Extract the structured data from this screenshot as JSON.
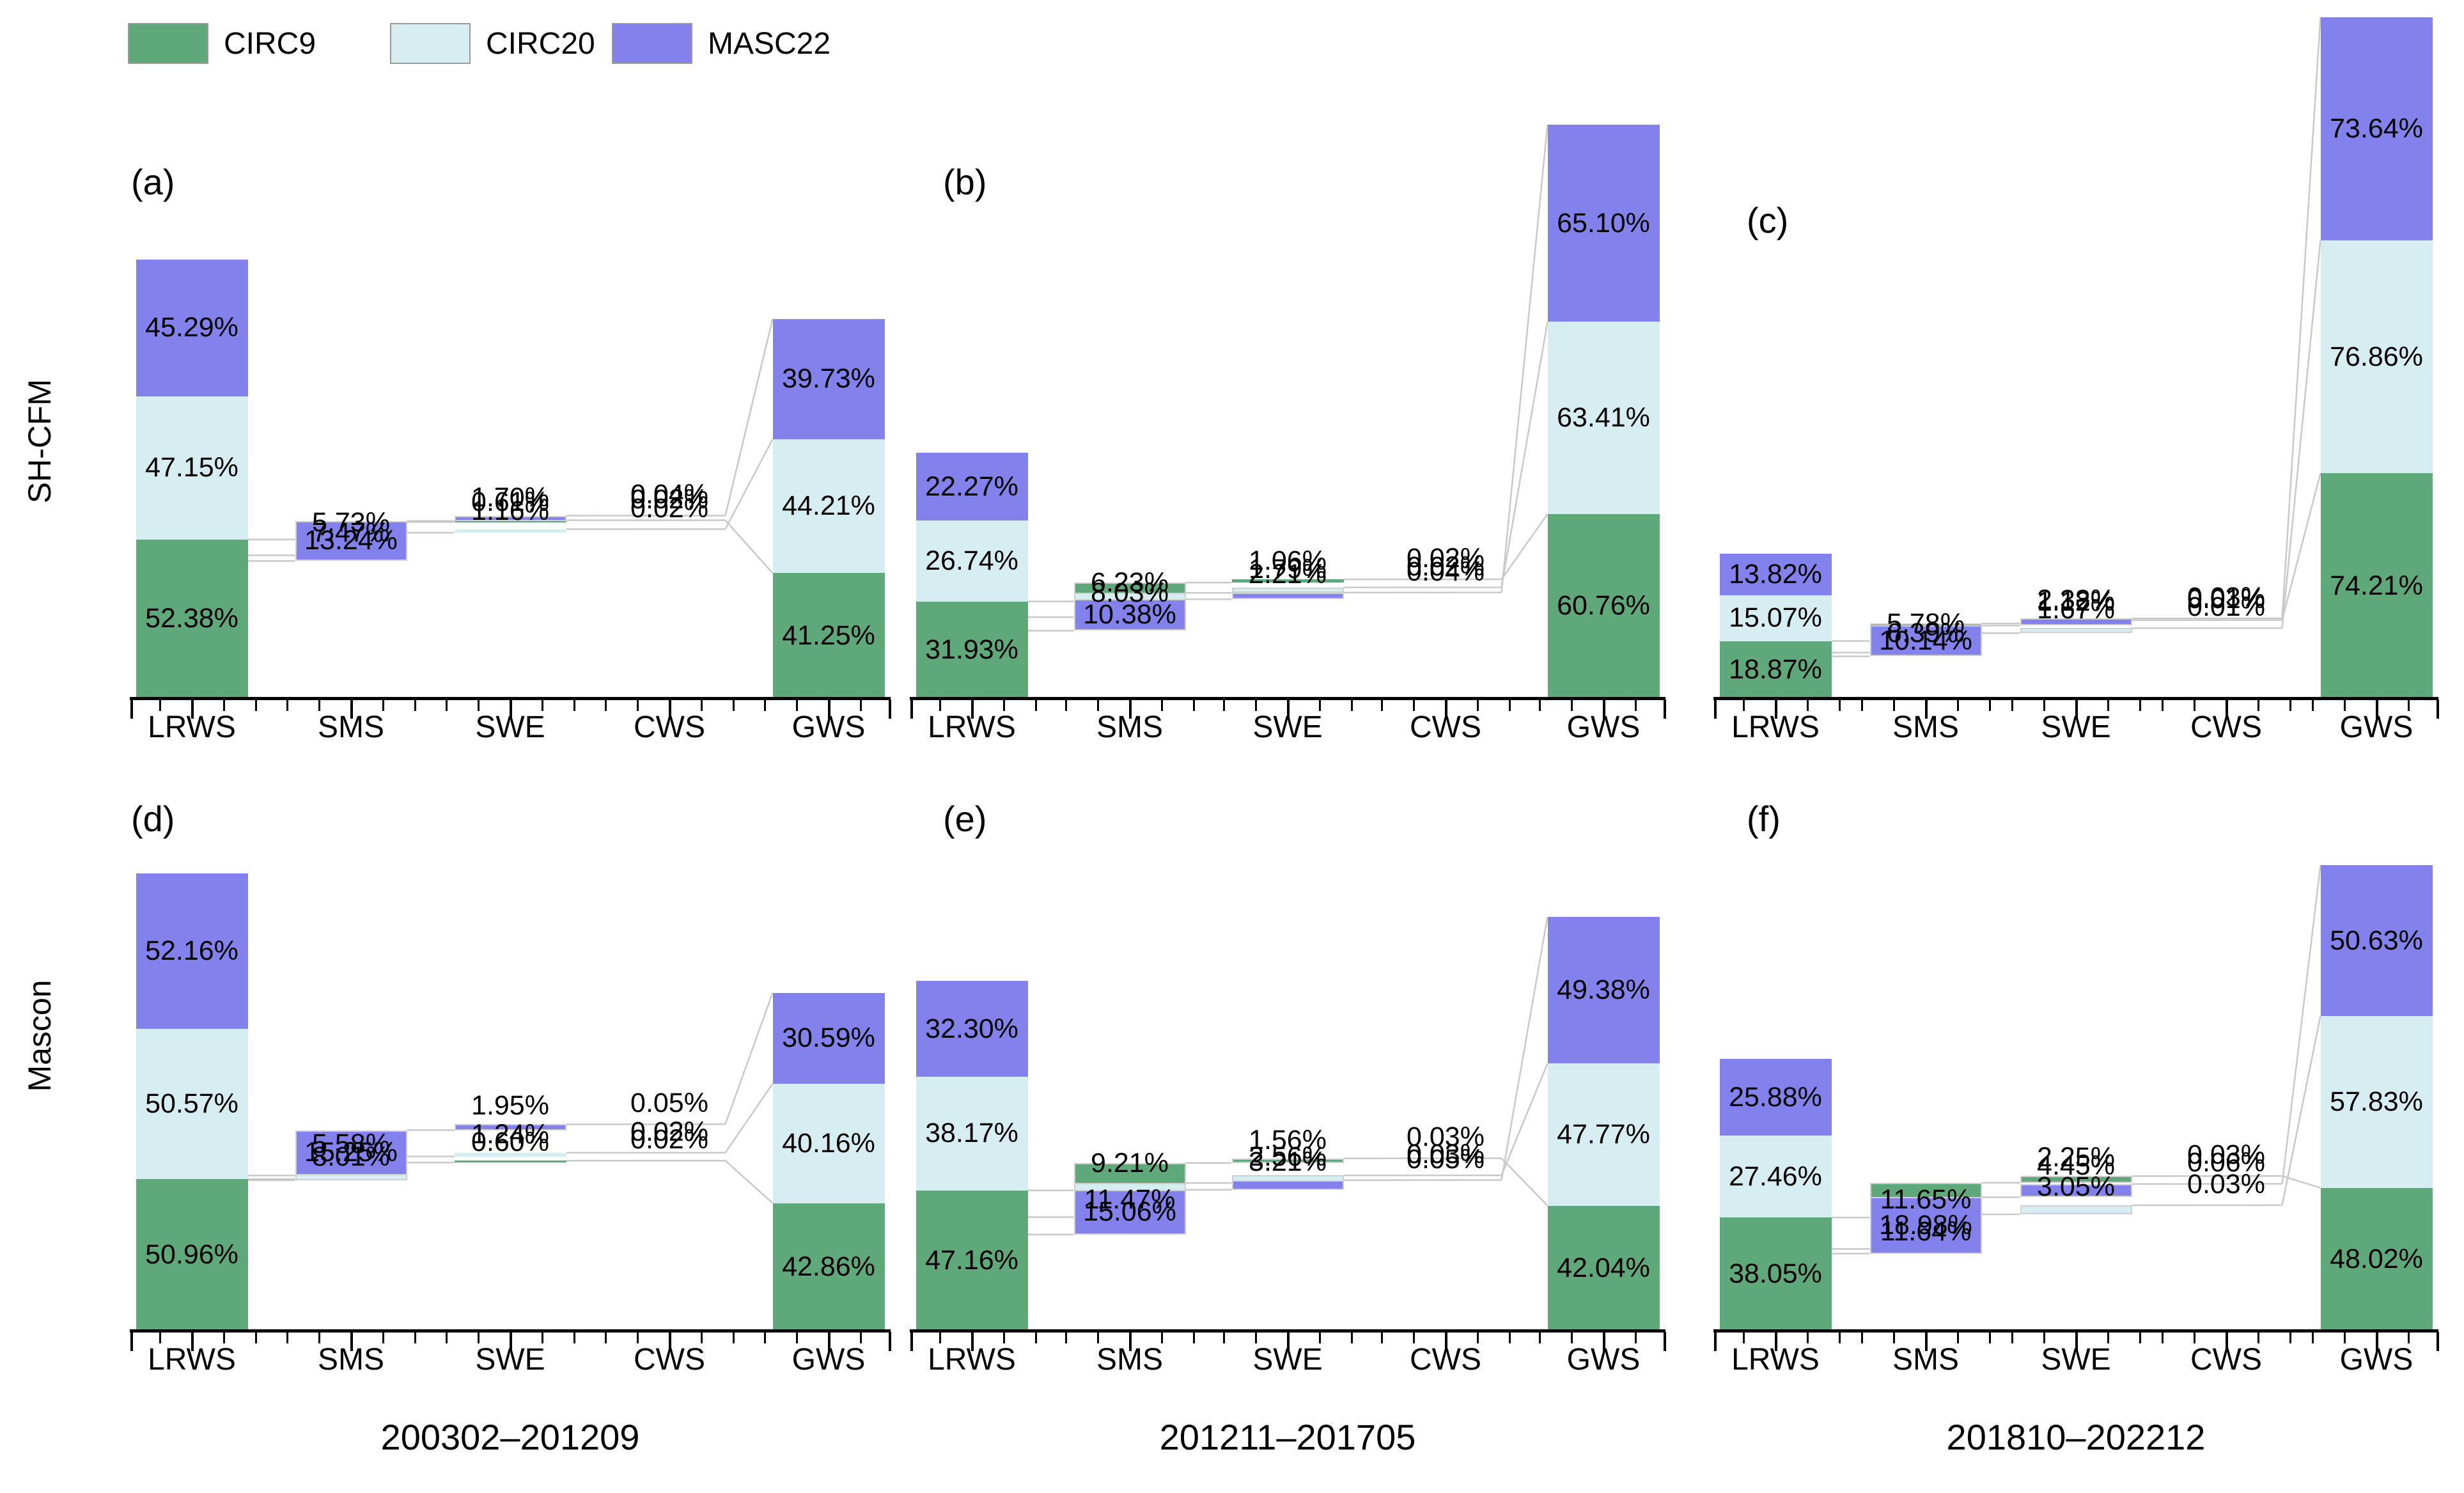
{
  "figure": {
    "legend": [
      {
        "label": "CIRC9",
        "color": "#5FA87A"
      },
      {
        "label": "CIRC20",
        "color": "#D6EEF2"
      },
      {
        "label": "MASC22",
        "color": "#8381EC"
      }
    ],
    "row_labels": [
      "SH-CFM",
      "Mascon"
    ],
    "col_periods": [
      "200302–201209",
      "201211–201705",
      "201810–202212"
    ],
    "connector_color": "#c9c9c9",
    "axis_color": "#000000"
  },
  "chart_data": {
    "type": "bar",
    "subtype": "cascading-stacked-percentage-bars",
    "categories": [
      "LRWS",
      "SMS",
      "SWE",
      "CWS",
      "GWS"
    ],
    "series_names": [
      "CIRC9",
      "CIRC20",
      "MASC22"
    ],
    "value_unit": "%",
    "panels": [
      {
        "id": "(a)",
        "row": "SH-CFM",
        "period": "200302–201209",
        "series": [
          {
            "name": "CIRC9",
            "values": [
              52.38,
              5.73,
              0.61,
              0.02,
              41.25
            ]
          },
          {
            "name": "CIRC20",
            "values": [
              47.15,
              7.47,
              1.16,
              0.02,
              44.21
            ]
          },
          {
            "name": "MASC22",
            "values": [
              45.29,
              13.24,
              1.7,
              0.04,
              39.73
            ]
          }
        ]
      },
      {
        "id": "(b)",
        "row": "SH-CFM",
        "period": "201211–201705",
        "series": [
          {
            "name": "CIRC9",
            "values": [
              31.93,
              6.23,
              1.06,
              0.02,
              60.76
            ]
          },
          {
            "name": "CIRC20",
            "values": [
              26.74,
              8.03,
              1.79,
              0.02,
              63.41
            ]
          },
          {
            "name": "MASC22",
            "values": [
              22.27,
              10.38,
              2.21,
              0.04,
              65.1
            ]
          }
        ]
      },
      {
        "id": "(c)",
        "row": "SH-CFM",
        "period": "201810–202212",
        "series": [
          {
            "name": "CIRC9",
            "values": [
              18.87,
              5.78,
              1.12,
              0.01,
              74.21
            ]
          },
          {
            "name": "CIRC20",
            "values": [
              15.07,
              6.39,
              1.67,
              0.01,
              76.86
            ]
          },
          {
            "name": "MASC22",
            "values": [
              13.82,
              10.14,
              2.38,
              0.03,
              73.64
            ]
          }
        ]
      },
      {
        "id": "(d)",
        "row": "Mascon",
        "period": "200302–201209",
        "series": [
          {
            "name": "CIRC9",
            "values": [
              50.96,
              5.58,
              0.6,
              0.02,
              42.86
            ]
          },
          {
            "name": "CIRC20",
            "values": [
              50.57,
              8.01,
              1.24,
              0.02,
              40.16
            ]
          },
          {
            "name": "MASC22",
            "values": [
              52.16,
              15.25,
              1.95,
              0.05,
              30.59
            ]
          }
        ]
      },
      {
        "id": "(e)",
        "row": "Mascon",
        "period": "201211–201705",
        "series": [
          {
            "name": "CIRC9",
            "values": [
              47.16,
              9.21,
              1.56,
              0.03,
              42.04
            ]
          },
          {
            "name": "CIRC20",
            "values": [
              38.17,
              11.47,
              2.56,
              0.03,
              47.77
            ]
          },
          {
            "name": "MASC22",
            "values": [
              32.3,
              15.06,
              3.21,
              0.05,
              49.38
            ]
          }
        ]
      },
      {
        "id": "(f)",
        "row": "Mascon",
        "period": "201810–202212",
        "series": [
          {
            "name": "CIRC9",
            "values": [
              38.05,
              11.65,
              2.25,
              0.03,
              48.02
            ]
          },
          {
            "name": "CIRC20",
            "values": [
              27.46,
              11.64,
              3.05,
              0.03,
              57.83
            ]
          },
          {
            "name": "MASC22",
            "values": [
              25.88,
              18.98,
              4.45,
              0.06,
              50.63
            ]
          }
        ]
      }
    ]
  }
}
